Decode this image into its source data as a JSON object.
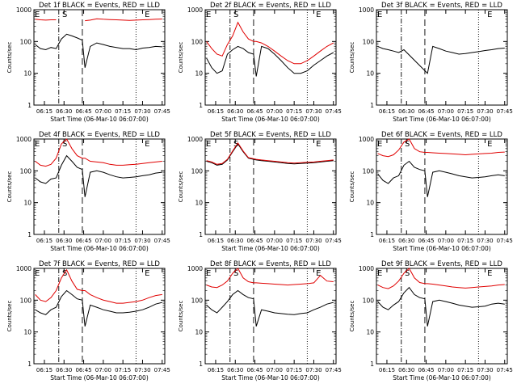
{
  "figure": {
    "colors": {
      "events": "#000000",
      "lld": "#e00000",
      "axes": "#000000",
      "background": "#ffffff"
    }
  },
  "chart_data": [
    {
      "type": "line",
      "title": "Det 1f BLACK = Events, RED = LLD",
      "xlabel": "Start Time (06-Mar-10 06:07:00)",
      "ylabel": "Counts/sec",
      "y_scale": "log",
      "ylim": [
        1,
        1000
      ],
      "yticks": [
        "1",
        "10",
        "100",
        "1000"
      ],
      "xticks": [
        "06:15",
        "06:30",
        "06:45",
        "07:00",
        "07:15",
        "07:30",
        "07:45"
      ],
      "annotations": [
        {
          "text": "E",
          "x": "06:07"
        },
        {
          "text": "S",
          "x": "06:28"
        },
        {
          "text": "E",
          "x": "07:31"
        }
      ],
      "x": [
        "06:08",
        "06:12",
        "06:16",
        "06:20",
        "06:24",
        "06:28",
        "06:32",
        "06:36",
        "06:40",
        "06:44",
        "06:46",
        "06:50",
        "06:55",
        "07:00",
        "07:05",
        "07:10",
        "07:15",
        "07:20",
        "07:25",
        "07:30",
        "07:35",
        "07:40",
        "07:45"
      ],
      "series": [
        {
          "name": "Events",
          "values": [
            80,
            60,
            55,
            65,
            60,
            120,
            170,
            150,
            130,
            110,
            15,
            70,
            90,
            80,
            70,
            65,
            60,
            60,
            55,
            62,
            65,
            70,
            68
          ]
        },
        {
          "name": "LLD",
          "values": [
            500,
            480,
            470,
            480,
            480,
            null,
            null,
            null,
            null,
            null,
            450,
            470,
            520,
            500,
            490,
            480,
            470,
            460,
            470,
            480,
            490,
            500,
            510
          ]
        }
      ]
    },
    {
      "type": "line",
      "title": "Det 2f BLACK = Events, RED = LLD",
      "xlabel": "Start Time (06-Mar-10 06:07:00)",
      "ylabel": "Counts/sec",
      "y_scale": "log",
      "ylim": [
        1,
        1000
      ],
      "yticks": [
        "1",
        "10",
        "100",
        "1000"
      ],
      "xticks": [
        "06:15",
        "06:30",
        "06:45",
        "07:00",
        "07:15",
        "07:30",
        "07:45"
      ],
      "annotations": [
        {
          "text": "E",
          "x": "06:07"
        },
        {
          "text": "S",
          "x": "06:28"
        },
        {
          "text": "E",
          "x": "07:31"
        }
      ],
      "x": [
        "06:08",
        "06:12",
        "06:16",
        "06:20",
        "06:24",
        "06:28",
        "06:32",
        "06:36",
        "06:40",
        "06:44",
        "06:46",
        "06:50",
        "06:55",
        "07:00",
        "07:05",
        "07:10",
        "07:15",
        "07:20",
        "07:25",
        "07:30",
        "07:35",
        "07:40",
        "07:45"
      ],
      "series": [
        {
          "name": "Events",
          "values": [
            30,
            15,
            10,
            12,
            40,
            55,
            70,
            60,
            45,
            40,
            8,
            70,
            60,
            40,
            25,
            15,
            10,
            10,
            12,
            18,
            25,
            35,
            45
          ]
        },
        {
          "name": "LLD",
          "values": [
            100,
            60,
            40,
            35,
            80,
            150,
            400,
            200,
            120,
            100,
            100,
            90,
            70,
            50,
            35,
            25,
            20,
            20,
            25,
            35,
            50,
            70,
            90
          ]
        }
      ]
    },
    {
      "type": "line",
      "title": "Det 3f BLACK = Events, RED = LLD",
      "xlabel": "Start Time (06-Mar-10 06:07:00)",
      "ylabel": "Counts/sec",
      "y_scale": "log",
      "ylim": [
        1,
        1000
      ],
      "yticks": [
        "1",
        "10",
        "100",
        "1000"
      ],
      "xticks": [
        "06:15",
        "06:30",
        "06:45",
        "07:00",
        "07:15",
        "07:30",
        "07:45"
      ],
      "annotations": [
        {
          "text": "E",
          "x": "06:07"
        },
        {
          "text": "E",
          "x": "07:31"
        }
      ],
      "x": [
        "06:08",
        "06:12",
        "06:16",
        "06:20",
        "06:24",
        "06:28",
        "06:46",
        "06:50",
        "06:55",
        "07:00",
        "07:05",
        "07:10",
        "07:15",
        "07:20",
        "07:25",
        "07:30",
        "07:35",
        "07:40",
        "07:45"
      ],
      "series": [
        {
          "name": "Events",
          "values": [
            70,
            60,
            55,
            50,
            45,
            55,
            10,
            70,
            60,
            50,
            45,
            40,
            42,
            45,
            48,
            52,
            55,
            60,
            62
          ]
        }
      ]
    },
    {
      "type": "line",
      "title": "Det 4f BLACK = Events, RED = LLD",
      "xlabel": "Start Time (06-Mar-10 06:07:00)",
      "ylabel": "Counts/sec",
      "y_scale": "log",
      "ylim": [
        1,
        1000
      ],
      "yticks": [
        "1",
        "10",
        "100",
        "1000"
      ],
      "xticks": [
        "06:15",
        "06:30",
        "06:45",
        "07:00",
        "07:15",
        "07:30",
        "07:45"
      ],
      "annotations": [
        {
          "text": "E",
          "x": "06:07"
        },
        {
          "text": "S",
          "x": "06:28"
        },
        {
          "text": "E",
          "x": "07:31"
        }
      ],
      "x": [
        "06:08",
        "06:12",
        "06:16",
        "06:20",
        "06:24",
        "06:28",
        "06:32",
        "06:36",
        "06:40",
        "06:44",
        "06:46",
        "06:50",
        "06:55",
        "07:00",
        "07:05",
        "07:10",
        "07:15",
        "07:20",
        "07:25",
        "07:30",
        "07:35",
        "07:40",
        "07:45"
      ],
      "series": [
        {
          "name": "Events",
          "values": [
            60,
            45,
            40,
            55,
            60,
            150,
            300,
            200,
            130,
            110,
            15,
            90,
            100,
            90,
            75,
            65,
            60,
            62,
            65,
            70,
            75,
            85,
            90
          ]
        },
        {
          "name": "LLD",
          "values": [
            200,
            150,
            140,
            160,
            250,
            700,
            1000,
            500,
            300,
            250,
            250,
            200,
            190,
            180,
            160,
            150,
            150,
            155,
            160,
            170,
            180,
            190,
            200
          ]
        }
      ]
    },
    {
      "type": "line",
      "title": "Det 5f BLACK = Events, RED = LLD",
      "xlabel": "Start Time (06-Mar-10 06:07:00)",
      "ylabel": "Counts/sec",
      "y_scale": "log",
      "ylim": [
        1,
        1000
      ],
      "yticks": [
        "1",
        "10",
        "100",
        "1000"
      ],
      "xticks": [
        "06:15",
        "06:30",
        "06:45",
        "07:00",
        "07:15",
        "07:30",
        "07:45"
      ],
      "annotations": [
        {
          "text": "E",
          "x": "06:07"
        },
        {
          "text": "S",
          "x": "06:28"
        },
        {
          "text": "E",
          "x": "07:31"
        }
      ],
      "x": [
        "06:08",
        "06:12",
        "06:16",
        "06:20",
        "06:24",
        "06:28",
        "06:32",
        "06:36",
        "06:40",
        "06:44",
        "06:46",
        "06:50",
        "06:55",
        "07:00",
        "07:05",
        "07:10",
        "07:15",
        "07:20",
        "07:25",
        "07:30",
        "07:35",
        "07:40",
        "07:45"
      ],
      "series": [
        {
          "name": "Events",
          "values": [
            200,
            180,
            150,
            160,
            220,
            400,
            700,
            400,
            250,
            230,
            220,
            210,
            200,
            190,
            180,
            170,
            165,
            170,
            175,
            180,
            190,
            200,
            210
          ]
        },
        {
          "name": "LLD",
          "values": [
            210,
            190,
            160,
            170,
            230,
            420,
            750,
            420,
            260,
            240,
            230,
            220,
            210,
            200,
            190,
            180,
            175,
            180,
            185,
            190,
            200,
            210,
            220
          ]
        }
      ]
    },
    {
      "type": "line",
      "title": "Det 6f BLACK = Events, RED = LLD",
      "xlabel": "Start Time (06-Mar-10 06:07:00)",
      "ylabel": "Counts/sec",
      "y_scale": "log",
      "ylim": [
        1,
        1000
      ],
      "yticks": [
        "1",
        "10",
        "100",
        "1000"
      ],
      "xticks": [
        "06:15",
        "06:30",
        "06:45",
        "07:00",
        "07:15",
        "07:30",
        "07:45"
      ],
      "annotations": [
        {
          "text": "E",
          "x": "06:07"
        },
        {
          "text": "S",
          "x": "06:28"
        },
        {
          "text": "E",
          "x": "07:31"
        }
      ],
      "x": [
        "06:08",
        "06:12",
        "06:16",
        "06:20",
        "06:24",
        "06:28",
        "06:32",
        "06:36",
        "06:40",
        "06:44",
        "06:46",
        "06:50",
        "06:55",
        "07:00",
        "07:05",
        "07:10",
        "07:15",
        "07:20",
        "07:25",
        "07:30",
        "07:35",
        "07:40",
        "07:45"
      ],
      "series": [
        {
          "name": "Events",
          "values": [
            80,
            50,
            40,
            60,
            70,
            150,
            200,
            130,
            110,
            100,
            15,
            90,
            100,
            90,
            80,
            70,
            65,
            60,
            62,
            65,
            70,
            75,
            70
          ]
        },
        {
          "name": "LLD",
          "values": [
            350,
            300,
            280,
            320,
            450,
            800,
            1000,
            500,
            400,
            380,
            380,
            370,
            360,
            350,
            340,
            330,
            320,
            330,
            340,
            350,
            360,
            380,
            390
          ]
        }
      ]
    },
    {
      "type": "line",
      "title": "Det 7f BLACK = Events, RED = LLD",
      "xlabel": "Start Time (06-Mar-10 06:07:00)",
      "ylabel": "Counts/sec",
      "y_scale": "log",
      "ylim": [
        1,
        1000
      ],
      "yticks": [
        "1",
        "10",
        "100",
        "1000"
      ],
      "xticks": [
        "06:15",
        "06:30",
        "06:45",
        "07:00",
        "07:15",
        "07:30",
        "07:45"
      ],
      "annotations": [
        {
          "text": "E",
          "x": "06:07"
        },
        {
          "text": "S",
          "x": "06:28"
        },
        {
          "text": "E",
          "x": "07:31"
        }
      ],
      "x": [
        "06:08",
        "06:12",
        "06:16",
        "06:20",
        "06:24",
        "06:28",
        "06:32",
        "06:36",
        "06:40",
        "06:44",
        "06:46",
        "06:50",
        "06:55",
        "07:00",
        "07:05",
        "07:10",
        "07:15",
        "07:20",
        "07:25",
        "07:30",
        "07:35",
        "07:40",
        "07:45"
      ],
      "series": [
        {
          "name": "Events",
          "values": [
            50,
            40,
            35,
            50,
            60,
            130,
            200,
            150,
            110,
            100,
            15,
            70,
            60,
            50,
            45,
            40,
            40,
            42,
            45,
            50,
            60,
            75,
            85
          ]
        },
        {
          "name": "LLD",
          "values": [
            150,
            100,
            90,
            120,
            200,
            500,
            900,
            400,
            220,
            200,
            200,
            150,
            120,
            100,
            90,
            80,
            80,
            85,
            90,
            100,
            120,
            140,
            150
          ]
        }
      ]
    },
    {
      "type": "line",
      "title": "Det 8f BLACK = Events, RED = LLD",
      "xlabel": "Start Time (06-Mar-10 06:07:00)",
      "ylabel": "Counts/sec",
      "y_scale": "log",
      "ylim": [
        1,
        1000
      ],
      "yticks": [
        "1",
        "10",
        "100",
        "1000"
      ],
      "xticks": [
        "06:15",
        "06:30",
        "06:45",
        "07:00",
        "07:15",
        "07:30",
        "07:45"
      ],
      "annotations": [
        {
          "text": "E",
          "x": "06:07"
        },
        {
          "text": "S",
          "x": "06:28"
        },
        {
          "text": "E",
          "x": "07:31"
        }
      ],
      "x": [
        "06:08",
        "06:12",
        "06:16",
        "06:20",
        "06:24",
        "06:28",
        "06:32",
        "06:36",
        "06:40",
        "06:44",
        "06:46",
        "06:50",
        "06:55",
        "07:00",
        "07:05",
        "07:10",
        "07:15",
        "07:20",
        "07:25",
        "07:30",
        "07:35",
        "07:40",
        "07:45"
      ],
      "series": [
        {
          "name": "Events",
          "values": [
            70,
            50,
            40,
            60,
            90,
            150,
            200,
            150,
            120,
            110,
            15,
            50,
            45,
            40,
            38,
            36,
            35,
            38,
            40,
            50,
            60,
            75,
            85
          ]
        },
        {
          "name": "LLD",
          "values": [
            300,
            260,
            250,
            300,
            400,
            700,
            1000,
            500,
            380,
            350,
            350,
            340,
            330,
            320,
            310,
            300,
            310,
            320,
            330,
            350,
            600,
            400,
            380
          ]
        }
      ]
    },
    {
      "type": "line",
      "title": "Det 9f BLACK = Events, RED = LLD",
      "xlabel": "Start Time (06-Mar-10 06:07:00)",
      "ylabel": "Counts/sec",
      "y_scale": "log",
      "ylim": [
        1,
        1000
      ],
      "yticks": [
        "1",
        "10",
        "100",
        "1000"
      ],
      "xticks": [
        "06:15",
        "06:30",
        "06:45",
        "07:00",
        "07:15",
        "07:30",
        "07:45"
      ],
      "annotations": [
        {
          "text": "E",
          "x": "06:07"
        },
        {
          "text": "S",
          "x": "06:28"
        },
        {
          "text": "E",
          "x": "07:31"
        }
      ],
      "x": [
        "06:08",
        "06:12",
        "06:16",
        "06:20",
        "06:24",
        "06:28",
        "06:32",
        "06:36",
        "06:40",
        "06:44",
        "06:46",
        "06:50",
        "06:55",
        "07:00",
        "07:05",
        "07:10",
        "07:15",
        "07:20",
        "07:25",
        "07:30",
        "07:35",
        "07:40",
        "07:45"
      ],
      "series": [
        {
          "name": "Events",
          "values": [
            90,
            60,
            50,
            70,
            90,
            170,
            250,
            150,
            120,
            110,
            15,
            90,
            100,
            90,
            80,
            70,
            65,
            60,
            62,
            65,
            75,
            80,
            75
          ]
        },
        {
          "name": "LLD",
          "values": [
            300,
            250,
            230,
            280,
            400,
            700,
            1000,
            500,
            360,
            330,
            330,
            320,
            300,
            280,
            260,
            250,
            240,
            250,
            260,
            270,
            280,
            300,
            310
          ]
        }
      ]
    }
  ]
}
